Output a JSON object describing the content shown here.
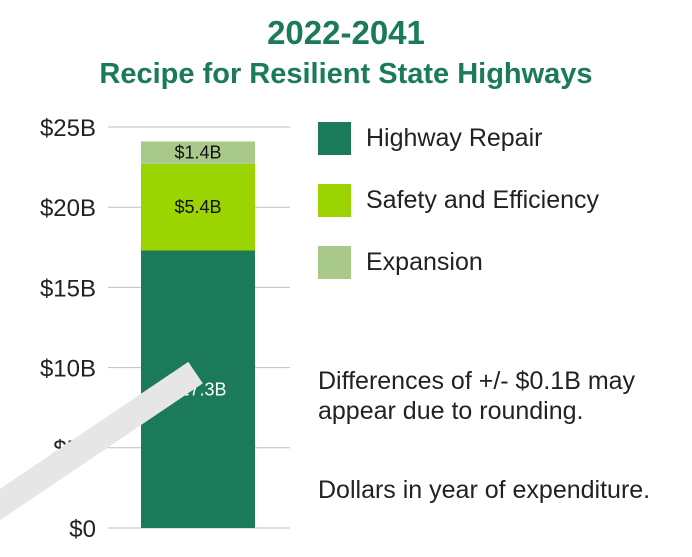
{
  "title": {
    "line1": "2022-2041",
    "line2": "Recipe for Resilient State Highways"
  },
  "colors": {
    "title": "#1a7a5a",
    "highway_repair": "#1a7a5a",
    "safety_efficiency": "#9bd400",
    "expansion": "#a9c98a",
    "grid": "#bfbfbf"
  },
  "legend": [
    {
      "label": "Highway Repair",
      "color": "#1a7a5a"
    },
    {
      "label": "Safety and Efficiency",
      "color": "#9bd400"
    },
    {
      "label": "Expansion",
      "color": "#a9c98a"
    }
  ],
  "notes": {
    "rounding": "Differences of +/- $0.1B may appear due to rounding.",
    "dollars": "Dollars in year of expenditure."
  },
  "chart_data": {
    "type": "bar",
    "stacked": true,
    "categories": [
      "2022-2041"
    ],
    "series": [
      {
        "name": "Highway Repair",
        "values": [
          17.3
        ],
        "label": "$17.3B",
        "color": "#1a7a5a",
        "label_color": "#ffffff"
      },
      {
        "name": "Safety and Efficiency",
        "values": [
          5.4
        ],
        "label": "$5.4B",
        "color": "#9bd400",
        "label_color": "#111111"
      },
      {
        "name": "Expansion",
        "values": [
          1.4
        ],
        "label": "$1.4B",
        "color": "#a9c98a",
        "label_color": "#111111"
      }
    ],
    "yticks": [
      0,
      5,
      10,
      15,
      20,
      25
    ],
    "ytick_labels": [
      "$0",
      "$5B",
      "$10B",
      "$15B",
      "$20B",
      "$25B"
    ],
    "ylim": [
      0,
      25
    ],
    "grid": true,
    "legend_position": "right"
  }
}
